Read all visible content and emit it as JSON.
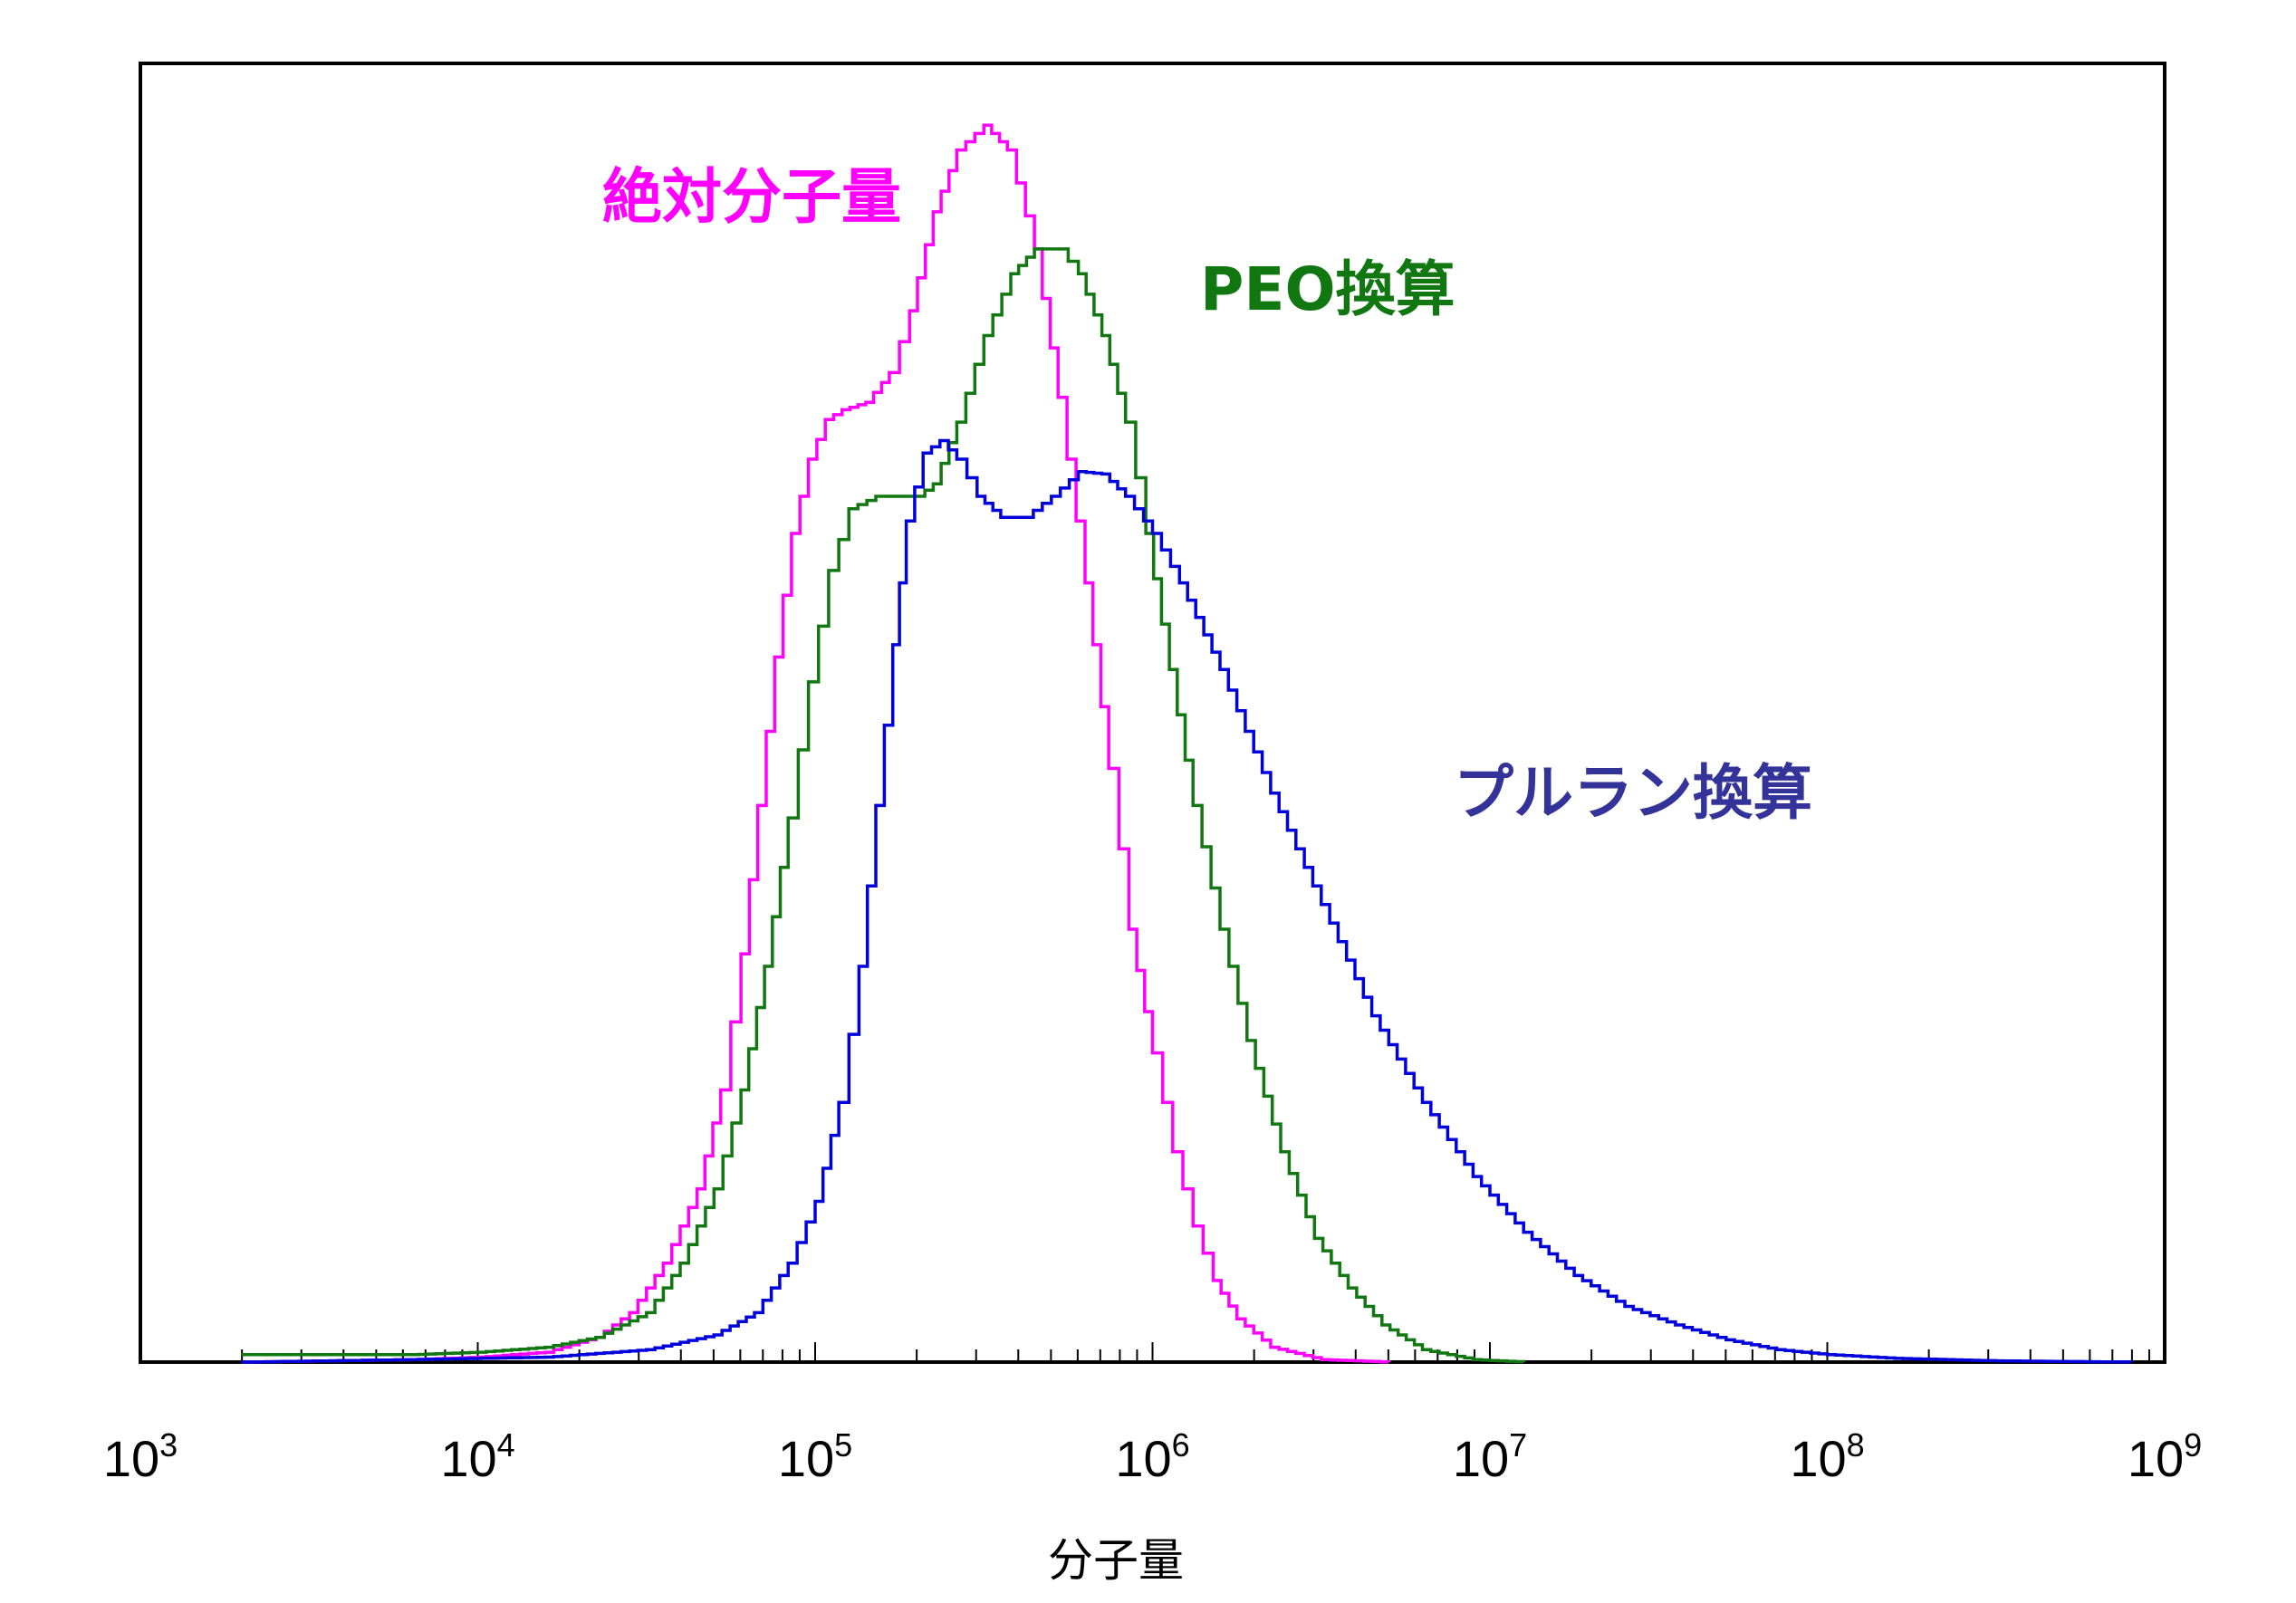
{
  "chart_data": {
    "type": "line",
    "title": "",
    "xlabel": "分子量",
    "ylabel": "",
    "x_scale": "log10",
    "xlim": [
      1000,
      1000000000
    ],
    "ylim": [
      0,
      1.05
    ],
    "grid": false,
    "y_ticks_shown": false,
    "x_ticks": [
      {
        "base": "10",
        "exp": "3"
      },
      {
        "base": "10",
        "exp": "4"
      },
      {
        "base": "10",
        "exp": "5"
      },
      {
        "base": "10",
        "exp": "6"
      },
      {
        "base": "10",
        "exp": "7"
      },
      {
        "base": "10",
        "exp": "8"
      },
      {
        "base": "10",
        "exp": "9"
      }
    ],
    "series": [
      {
        "name": "絶対分子量",
        "color": "#ff00ff",
        "points": [
          [
            3.3,
            0.0
          ],
          [
            3.8,
            0.002
          ],
          [
            4.0,
            0.004
          ],
          [
            4.2,
            0.008
          ],
          [
            4.35,
            0.02
          ],
          [
            4.45,
            0.04
          ],
          [
            4.55,
            0.08
          ],
          [
            4.65,
            0.14
          ],
          [
            4.72,
            0.22
          ],
          [
            4.78,
            0.33
          ],
          [
            4.83,
            0.45
          ],
          [
            4.88,
            0.57
          ],
          [
            4.93,
            0.67
          ],
          [
            4.98,
            0.73
          ],
          [
            5.03,
            0.762
          ],
          [
            5.08,
            0.77
          ],
          [
            5.15,
            0.776
          ],
          [
            5.22,
            0.8
          ],
          [
            5.28,
            0.85
          ],
          [
            5.35,
            0.93
          ],
          [
            5.42,
            0.98
          ],
          [
            5.5,
            1.0
          ],
          [
            5.57,
            0.98
          ],
          [
            5.65,
            0.9
          ],
          [
            5.72,
            0.78
          ],
          [
            5.8,
            0.63
          ],
          [
            5.87,
            0.48
          ],
          [
            5.93,
            0.35
          ],
          [
            6.0,
            0.25
          ],
          [
            6.06,
            0.17
          ],
          [
            6.12,
            0.11
          ],
          [
            6.18,
            0.066
          ],
          [
            6.25,
            0.035
          ],
          [
            6.35,
            0.012
          ],
          [
            6.5,
            0.002
          ],
          [
            6.7,
            0.0
          ]
        ]
      },
      {
        "name": "PEO換算",
        "color": "#117711",
        "points": [
          [
            3.3,
            0.006
          ],
          [
            3.8,
            0.006
          ],
          [
            4.0,
            0.008
          ],
          [
            4.2,
            0.012
          ],
          [
            4.35,
            0.02
          ],
          [
            4.5,
            0.04
          ],
          [
            4.6,
            0.08
          ],
          [
            4.7,
            0.14
          ],
          [
            4.78,
            0.22
          ],
          [
            4.85,
            0.32
          ],
          [
            4.92,
            0.44
          ],
          [
            4.98,
            0.55
          ],
          [
            5.04,
            0.64
          ],
          [
            5.1,
            0.69
          ],
          [
            5.18,
            0.7
          ],
          [
            5.25,
            0.7
          ],
          [
            5.3,
            0.7
          ],
          [
            5.35,
            0.71
          ],
          [
            5.42,
            0.76
          ],
          [
            5.5,
            0.83
          ],
          [
            5.58,
            0.88
          ],
          [
            5.65,
            0.9
          ],
          [
            5.72,
            0.9
          ],
          [
            5.78,
            0.88
          ],
          [
            5.85,
            0.83
          ],
          [
            5.92,
            0.76
          ],
          [
            5.98,
            0.67
          ],
          [
            6.05,
            0.56
          ],
          [
            6.12,
            0.45
          ],
          [
            6.2,
            0.35
          ],
          [
            6.28,
            0.26
          ],
          [
            6.38,
            0.17
          ],
          [
            6.48,
            0.1
          ],
          [
            6.58,
            0.06
          ],
          [
            6.68,
            0.03
          ],
          [
            6.8,
            0.01
          ],
          [
            6.95,
            0.002
          ],
          [
            7.1,
            0.0
          ]
        ]
      },
      {
        "name": "プルラン換算",
        "color": "#0000dd",
        "points": [
          [
            3.3,
            0.0
          ],
          [
            3.8,
            0.002
          ],
          [
            4.2,
            0.004
          ],
          [
            4.5,
            0.01
          ],
          [
            4.7,
            0.022
          ],
          [
            4.82,
            0.04
          ],
          [
            4.92,
            0.08
          ],
          [
            5.0,
            0.13
          ],
          [
            5.07,
            0.21
          ],
          [
            5.13,
            0.32
          ],
          [
            5.18,
            0.45
          ],
          [
            5.23,
            0.58
          ],
          [
            5.27,
            0.68
          ],
          [
            5.32,
            0.735
          ],
          [
            5.37,
            0.745
          ],
          [
            5.42,
            0.73
          ],
          [
            5.48,
            0.7
          ],
          [
            5.55,
            0.683
          ],
          [
            5.62,
            0.683
          ],
          [
            5.7,
            0.7
          ],
          [
            5.78,
            0.72
          ],
          [
            5.85,
            0.718
          ],
          [
            5.92,
            0.7
          ],
          [
            6.0,
            0.67
          ],
          [
            6.08,
            0.63
          ],
          [
            6.2,
            0.56
          ],
          [
            6.35,
            0.46
          ],
          [
            6.5,
            0.37
          ],
          [
            6.65,
            0.28
          ],
          [
            6.8,
            0.21
          ],
          [
            6.95,
            0.15
          ],
          [
            7.1,
            0.105
          ],
          [
            7.25,
            0.07
          ],
          [
            7.4,
            0.045
          ],
          [
            7.55,
            0.03
          ],
          [
            7.7,
            0.018
          ],
          [
            7.85,
            0.01
          ],
          [
            8.0,
            0.006
          ],
          [
            8.2,
            0.003
          ],
          [
            8.5,
            0.001
          ],
          [
            8.9,
            0.0
          ]
        ]
      }
    ],
    "annotations": [
      {
        "text": "絶対分子量",
        "series": "絶対分子量"
      },
      {
        "text": "PEO換算",
        "series": "PEO換算"
      },
      {
        "text": "プルラン換算",
        "series": "プルラン換算"
      }
    ]
  }
}
